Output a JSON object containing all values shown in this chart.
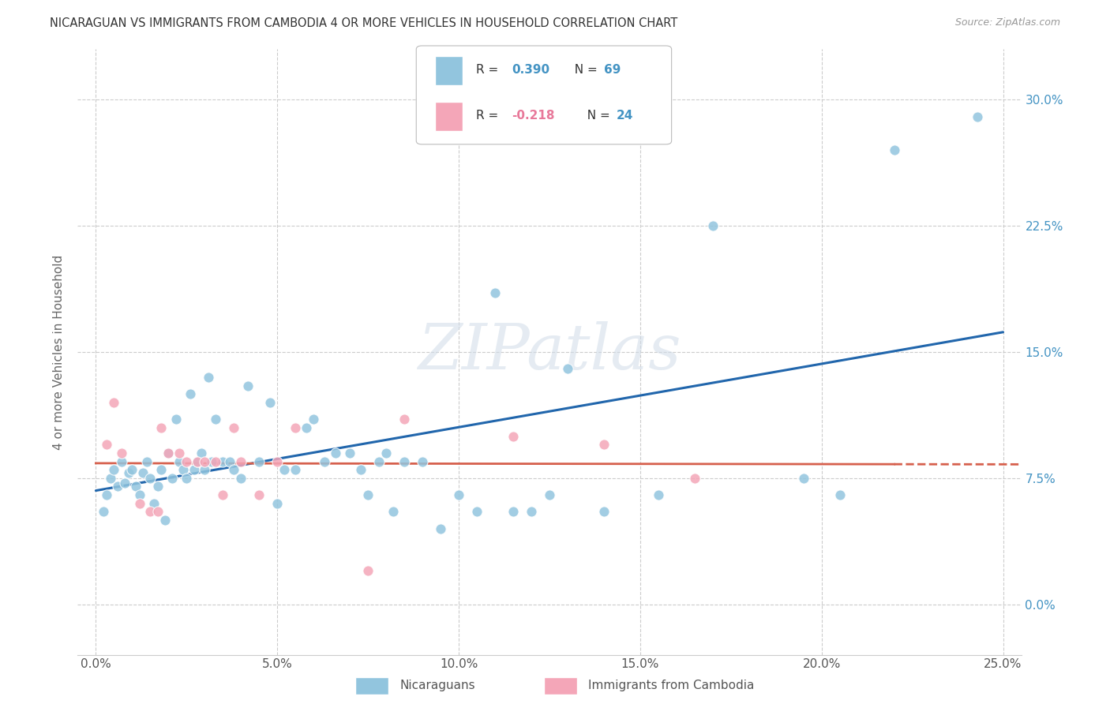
{
  "title": "NICARAGUAN VS IMMIGRANTS FROM CAMBODIA 4 OR MORE VEHICLES IN HOUSEHOLD CORRELATION CHART",
  "source": "Source: ZipAtlas.com",
  "ylabel": "4 or more Vehicles in Household",
  "xlim": [
    -0.5,
    25.5
  ],
  "ylim": [
    -3.0,
    33.0
  ],
  "xtick_vals": [
    0.0,
    5.0,
    10.0,
    15.0,
    20.0,
    25.0
  ],
  "ytick_vals": [
    0.0,
    7.5,
    15.0,
    22.5,
    30.0
  ],
  "blue_color": "#92c5de",
  "pink_color": "#f4a6b8",
  "blue_line_color": "#2166ac",
  "pink_line_color": "#d6604d",
  "watermark": "ZIPatlas",
  "nic_x": [
    0.2,
    0.3,
    0.4,
    0.5,
    0.6,
    0.7,
    0.8,
    0.9,
    1.0,
    1.1,
    1.2,
    1.3,
    1.4,
    1.5,
    1.6,
    1.7,
    1.8,
    1.9,
    2.0,
    2.1,
    2.2,
    2.3,
    2.4,
    2.5,
    2.6,
    2.7,
    2.8,
    2.9,
    3.0,
    3.1,
    3.2,
    3.3,
    3.5,
    3.7,
    3.8,
    4.0,
    4.2,
    4.5,
    4.8,
    5.0,
    5.2,
    5.5,
    5.8,
    6.0,
    6.3,
    6.6,
    7.0,
    7.3,
    7.5,
    7.8,
    8.0,
    8.2,
    8.5,
    9.0,
    9.5,
    10.0,
    10.5,
    11.0,
    11.5,
    12.0,
    12.5,
    13.0,
    14.0,
    15.5,
    17.0,
    19.5,
    20.5,
    22.0,
    24.3
  ],
  "nic_y": [
    5.5,
    6.5,
    7.5,
    8.0,
    7.0,
    8.5,
    7.2,
    7.8,
    8.0,
    7.0,
    6.5,
    7.8,
    8.5,
    7.5,
    6.0,
    7.0,
    8.0,
    5.0,
    9.0,
    7.5,
    11.0,
    8.5,
    8.0,
    7.5,
    12.5,
    8.0,
    8.5,
    9.0,
    8.0,
    13.5,
    8.5,
    11.0,
    8.5,
    8.5,
    8.0,
    7.5,
    13.0,
    8.5,
    12.0,
    6.0,
    8.0,
    8.0,
    10.5,
    11.0,
    8.5,
    9.0,
    9.0,
    8.0,
    6.5,
    8.5,
    9.0,
    5.5,
    8.5,
    8.5,
    4.5,
    6.5,
    5.5,
    18.5,
    5.5,
    5.5,
    6.5,
    14.0,
    5.5,
    6.5,
    22.5,
    7.5,
    6.5,
    27.0,
    29.0
  ],
  "cam_x": [
    0.3,
    0.5,
    0.7,
    1.2,
    1.5,
    1.7,
    1.8,
    2.0,
    2.3,
    2.5,
    2.8,
    3.0,
    3.3,
    3.5,
    3.8,
    4.0,
    4.5,
    5.0,
    5.5,
    7.5,
    8.5,
    11.5,
    14.0,
    16.5
  ],
  "cam_y": [
    9.5,
    12.0,
    9.0,
    6.0,
    5.5,
    5.5,
    10.5,
    9.0,
    9.0,
    8.5,
    8.5,
    8.5,
    8.5,
    6.5,
    10.5,
    8.5,
    6.5,
    8.5,
    10.5,
    2.0,
    11.0,
    10.0,
    9.5,
    7.5
  ]
}
